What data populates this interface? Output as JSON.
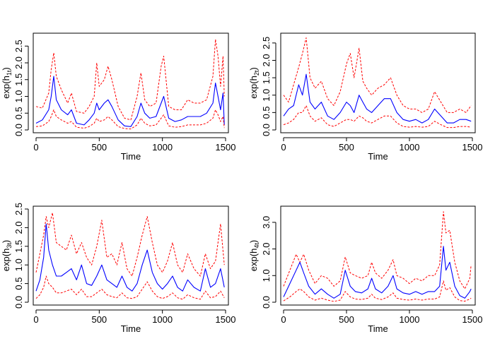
{
  "figure": {
    "background": "#ffffff",
    "line_colors": {
      "mean": "#0000ff",
      "band": "#ff0000"
    }
  },
  "chart_data": [
    {
      "type": "line",
      "xlabel": "Time",
      "ylabel_base": "exp(h",
      "ylabel_sub": "1t",
      "ylabel_end": ")",
      "xlim": [
        0,
        1500
      ],
      "ylim": [
        0,
        2.8
      ],
      "xticks": [
        "0",
        "500",
        "1000",
        "1500"
      ],
      "yticks": [
        "0.0",
        "0.5",
        "1.0",
        "1.5",
        "2.0",
        "2.5"
      ],
      "x": [
        0,
        50,
        100,
        120,
        140,
        160,
        200,
        250,
        280,
        320,
        380,
        420,
        460,
        480,
        500,
        540,
        570,
        600,
        650,
        700,
        750,
        800,
        830,
        860,
        900,
        950,
        990,
        1010,
        1050,
        1100,
        1150,
        1200,
        1250,
        1300,
        1350,
        1400,
        1420,
        1440,
        1460,
        1480,
        1490
      ],
      "series": [
        {
          "style": "dashed",
          "values": [
            0.7,
            0.65,
            1.1,
            1.8,
            2.3,
            1.6,
            1.2,
            0.8,
            1.1,
            0.55,
            0.5,
            0.7,
            1.0,
            2.0,
            1.3,
            1.5,
            1.9,
            1.5,
            0.7,
            0.35,
            0.3,
            1.0,
            1.7,
            0.9,
            0.7,
            0.8,
            1.9,
            2.2,
            0.7,
            0.6,
            0.6,
            0.9,
            0.8,
            0.8,
            0.9,
            1.6,
            2.7,
            2.2,
            1.3,
            2.2,
            1.0
          ]
        },
        {
          "style": "solid",
          "values": [
            0.2,
            0.3,
            0.6,
            1.0,
            1.6,
            0.9,
            0.6,
            0.45,
            0.6,
            0.2,
            0.15,
            0.3,
            0.5,
            0.8,
            0.6,
            0.8,
            0.9,
            0.7,
            0.3,
            0.12,
            0.1,
            0.4,
            0.8,
            0.5,
            0.35,
            0.4,
            0.8,
            1.0,
            0.35,
            0.25,
            0.3,
            0.4,
            0.4,
            0.4,
            0.5,
            0.8,
            1.4,
            1.0,
            0.6,
            1.1,
            0.15
          ]
        },
        {
          "style": "dashed",
          "values": [
            0.1,
            0.12,
            0.25,
            0.4,
            0.6,
            0.4,
            0.3,
            0.2,
            0.25,
            0.08,
            0.05,
            0.1,
            0.2,
            0.35,
            0.25,
            0.3,
            0.4,
            0.3,
            0.1,
            0.04,
            0.03,
            0.15,
            0.35,
            0.2,
            0.12,
            0.15,
            0.35,
            0.45,
            0.12,
            0.08,
            0.1,
            0.15,
            0.15,
            0.15,
            0.2,
            0.35,
            0.6,
            0.45,
            0.25,
            0.4,
            0.06
          ]
        }
      ]
    },
    {
      "type": "line",
      "xlabel": "Time",
      "ylabel_base": "exp(h",
      "ylabel_sub": "2t",
      "ylabel_end": ")",
      "xlim": [
        0,
        1500
      ],
      "ylim": [
        0,
        2.7
      ],
      "xticks": [
        "0",
        "500",
        "1000",
        "1500"
      ],
      "yticks": [
        "0.0",
        "0.5",
        "1.0",
        "1.5",
        "2.0",
        "2.5"
      ],
      "x": [
        0,
        40,
        80,
        120,
        150,
        180,
        210,
        250,
        300,
        350,
        400,
        450,
        500,
        530,
        560,
        600,
        630,
        660,
        700,
        750,
        800,
        850,
        900,
        950,
        1000,
        1050,
        1100,
        1150,
        1200,
        1250,
        1300,
        1350,
        1400,
        1450,
        1490
      ],
      "series": [
        {
          "style": "dashed",
          "values": [
            1.0,
            0.8,
            1.3,
            1.8,
            2.2,
            2.65,
            1.5,
            1.2,
            1.4,
            0.9,
            0.7,
            1.1,
            1.9,
            2.2,
            1.5,
            2.35,
            1.4,
            1.2,
            1.0,
            1.2,
            1.3,
            1.5,
            1.0,
            0.7,
            0.6,
            0.6,
            0.5,
            0.6,
            1.1,
            0.8,
            0.5,
            0.5,
            0.6,
            0.5,
            0.7
          ]
        },
        {
          "style": "solid",
          "values": [
            0.4,
            0.6,
            0.7,
            1.3,
            1.0,
            1.6,
            0.8,
            0.6,
            0.8,
            0.4,
            0.3,
            0.5,
            0.8,
            0.7,
            0.5,
            1.0,
            0.8,
            0.6,
            0.5,
            0.7,
            0.9,
            0.9,
            0.5,
            0.3,
            0.25,
            0.3,
            0.2,
            0.3,
            0.6,
            0.4,
            0.2,
            0.2,
            0.3,
            0.3,
            0.25
          ]
        },
        {
          "style": "dashed",
          "values": [
            0.15,
            0.2,
            0.3,
            0.5,
            0.5,
            0.7,
            0.4,
            0.25,
            0.35,
            0.15,
            0.1,
            0.2,
            0.3,
            0.3,
            0.25,
            0.4,
            0.35,
            0.25,
            0.2,
            0.3,
            0.4,
            0.4,
            0.2,
            0.1,
            0.08,
            0.1,
            0.08,
            0.1,
            0.25,
            0.15,
            0.07,
            0.07,
            0.1,
            0.1,
            0.08
          ]
        }
      ]
    },
    {
      "type": "line",
      "xlabel": "Time",
      "ylabel_base": "exp(h",
      "ylabel_sub": "3t",
      "ylabel_end": ")",
      "xlim": [
        0,
        1500
      ],
      "ylim": [
        0,
        2.5
      ],
      "xticks": [
        "0",
        "500",
        "1000",
        "1500"
      ],
      "yticks": [
        "0.0",
        "0.5",
        "1.0",
        "1.5",
        "2.0",
        "2.5"
      ],
      "x": [
        0,
        30,
        60,
        80,
        100,
        130,
        160,
        200,
        240,
        280,
        320,
        360,
        400,
        440,
        480,
        520,
        560,
        600,
        640,
        680,
        720,
        760,
        800,
        840,
        880,
        920,
        960,
        1000,
        1040,
        1080,
        1120,
        1160,
        1200,
        1250,
        1300,
        1340,
        1380,
        1420,
        1460,
        1490
      ],
      "series": [
        {
          "style": "dashed",
          "values": [
            0.8,
            1.3,
            1.8,
            2.3,
            2.0,
            2.4,
            1.6,
            1.5,
            1.4,
            1.8,
            1.3,
            1.6,
            1.2,
            1.0,
            1.5,
            2.2,
            1.2,
            1.3,
            1.0,
            1.6,
            0.9,
            0.7,
            1.2,
            1.8,
            2.3,
            1.6,
            1.0,
            0.8,
            1.1,
            1.6,
            1.0,
            0.8,
            1.3,
            0.9,
            0.7,
            1.3,
            0.9,
            1.1,
            2.1,
            1.0
          ]
        },
        {
          "style": "solid",
          "values": [
            0.3,
            0.6,
            1.2,
            2.1,
            1.4,
            1.0,
            0.7,
            0.7,
            0.8,
            0.9,
            0.6,
            1.0,
            0.5,
            0.45,
            0.7,
            1.0,
            0.6,
            0.5,
            0.4,
            0.7,
            0.4,
            0.3,
            0.5,
            1.0,
            1.4,
            0.8,
            0.5,
            0.35,
            0.5,
            0.7,
            0.4,
            0.3,
            0.6,
            0.4,
            0.3,
            0.9,
            0.4,
            0.5,
            0.9,
            0.4
          ]
        },
        {
          "style": "dashed",
          "values": [
            0.1,
            0.2,
            0.4,
            0.7,
            0.5,
            0.4,
            0.25,
            0.25,
            0.3,
            0.35,
            0.2,
            0.35,
            0.15,
            0.15,
            0.25,
            0.35,
            0.2,
            0.15,
            0.12,
            0.25,
            0.12,
            0.1,
            0.15,
            0.35,
            0.55,
            0.3,
            0.15,
            0.1,
            0.15,
            0.25,
            0.12,
            0.08,
            0.2,
            0.12,
            0.08,
            0.3,
            0.12,
            0.15,
            0.3,
            0.12
          ]
        }
      ]
    },
    {
      "type": "line",
      "xlabel": "Time",
      "ylabel_base": "exp(h",
      "ylabel_sub": "4t",
      "ylabel_end": ")",
      "xlim": [
        0,
        1500
      ],
      "ylim": [
        0,
        3.5
      ],
      "xticks": [
        "0",
        "500",
        "1000",
        "1500"
      ],
      "yticks": [
        "0.0",
        "1.0",
        "2.0",
        "3.0"
      ],
      "x": [
        0,
        50,
        100,
        130,
        160,
        200,
        250,
        300,
        350,
        400,
        450,
        490,
        530,
        570,
        620,
        670,
        700,
        730,
        780,
        830,
        870,
        900,
        950,
        1000,
        1050,
        1100,
        1150,
        1200,
        1240,
        1270,
        1290,
        1320,
        1360,
        1400,
        1440,
        1480,
        1490
      ],
      "series": [
        {
          "style": "dashed",
          "values": [
            0.6,
            1.2,
            1.8,
            1.5,
            1.8,
            1.2,
            0.7,
            1.0,
            0.9,
            0.6,
            0.8,
            1.7,
            1.1,
            1.0,
            0.9,
            1.0,
            1.5,
            1.1,
            0.9,
            1.2,
            1.6,
            1.0,
            0.9,
            0.7,
            0.9,
            0.8,
            1.0,
            1.0,
            1.4,
            3.4,
            2.6,
            2.7,
            1.5,
            0.8,
            0.5,
            0.9,
            1.4
          ]
        },
        {
          "style": "solid",
          "values": [
            0.2,
            0.7,
            1.2,
            1.5,
            1.1,
            0.6,
            0.3,
            0.5,
            0.3,
            0.15,
            0.3,
            1.2,
            0.6,
            0.4,
            0.35,
            0.5,
            0.9,
            0.5,
            0.35,
            0.6,
            1.0,
            0.5,
            0.35,
            0.3,
            0.4,
            0.3,
            0.4,
            0.4,
            0.6,
            2.1,
            1.2,
            1.5,
            0.6,
            0.25,
            0.15,
            0.4,
            0.5
          ]
        },
        {
          "style": "dashed",
          "values": [
            0.05,
            0.2,
            0.4,
            0.5,
            0.4,
            0.2,
            0.08,
            0.15,
            0.08,
            0.03,
            0.08,
            0.4,
            0.2,
            0.12,
            0.1,
            0.15,
            0.3,
            0.15,
            0.1,
            0.2,
            0.35,
            0.15,
            0.1,
            0.08,
            0.12,
            0.08,
            0.12,
            0.12,
            0.2,
            0.8,
            0.45,
            0.55,
            0.2,
            0.06,
            0.04,
            0.12,
            0.15
          ]
        }
      ]
    }
  ]
}
